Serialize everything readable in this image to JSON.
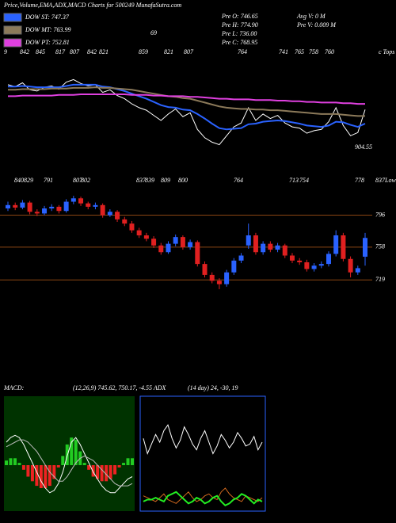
{
  "header": {
    "title": "Price,Volume,EMA,ADX,MACD Charts for 500249 MunafaSutra.com",
    "pre": [
      "Pre   O: 746.65",
      "Pre   H: 774.90",
      "Pre   L: 736.00",
      "Pre   C: 768.95"
    ],
    "avg": [
      "Avg V: 0  M",
      "Pre   V: 0.009 M"
    ],
    "marker": "69",
    "macd_label": "MACD:",
    "macd_params": "(12,26,9) 745.62, 750.17, -4.55 ADX",
    "adx_params": "(14 day) 24, -30, 19"
  },
  "chart_data": [
    {
      "type": "line",
      "ylim": [
        680,
        860
      ],
      "annotation": "904.55",
      "top_labels": [
        "9",
        "842",
        "845",
        "817",
        "807",
        "842",
        "821",
        "859",
        "821",
        "807",
        "764",
        "741",
        "765",
        "758",
        "760",
        "c Tops"
      ],
      "series": [
        {
          "color": "#ffffff",
          "values": [
            808,
            805,
            811,
            800,
            798,
            804,
            806,
            801,
            812,
            816,
            810,
            806,
            808,
            796,
            800,
            791,
            786,
            778,
            772,
            768,
            760,
            752,
            762,
            770,
            758,
            764,
            738,
            725,
            718,
            714,
            728,
            742,
            748,
            772,
            752,
            762,
            755,
            760,
            748,
            742,
            740,
            732,
            736,
            738,
            750,
            772,
            744,
            728,
            733,
            768.95
          ]
        },
        {
          "name": "DOW ST: 747.37",
          "color": "#2a62ff",
          "values": [
            805,
            805,
            806,
            805,
            804,
            804,
            804,
            804,
            806,
            808,
            808,
            808,
            808,
            805,
            804,
            801,
            798,
            794,
            790,
            786,
            781,
            776,
            773,
            772,
            769,
            768,
            762,
            755,
            747,
            740,
            738,
            739,
            740,
            746,
            747,
            750,
            751,
            752,
            751,
            749,
            747,
            744,
            743,
            742,
            744,
            750,
            749,
            745,
            742,
            747
          ]
        },
        {
          "name": "DOW MT: 763.99",
          "color": "#8c7a5a",
          "values": [
            800,
            800,
            801,
            801,
            801,
            801,
            802,
            802,
            802,
            803,
            803,
            803,
            804,
            803,
            803,
            802,
            801,
            800,
            798,
            796,
            794,
            792,
            790,
            789,
            787,
            786,
            783,
            780,
            777,
            774,
            772,
            771,
            770,
            770,
            769,
            769,
            768,
            768,
            767,
            766,
            765,
            764,
            763,
            762,
            762,
            762,
            761,
            760,
            759,
            759
          ]
        },
        {
          "name": "DOW PT: 752.81",
          "color": "#e040e0",
          "values": [
            790,
            790,
            791,
            791,
            791,
            791,
            791,
            792,
            792,
            792,
            793,
            793,
            793,
            793,
            793,
            793,
            793,
            792,
            792,
            792,
            791,
            791,
            790,
            790,
            790,
            789,
            789,
            788,
            787,
            786,
            786,
            785,
            785,
            785,
            784,
            784,
            784,
            783,
            783,
            782,
            782,
            781,
            781,
            780,
            780,
            780,
            779,
            779,
            778,
            778
          ]
        }
      ]
    },
    {
      "type": "candlestick",
      "ylim": [
        675,
        837
      ],
      "yticks": [
        837,
        796,
        758,
        719
      ],
      "up_color": "#2a62ff",
      "down_color": "#e02020",
      "low_labels": [
        "840",
        "829",
        "791",
        "807",
        "802",
        "837",
        "839",
        "809",
        "800",
        "764",
        "713",
        "754",
        "778",
        "Lows"
      ],
      "open": [
        804,
        808,
        805,
        811,
        800,
        798,
        804,
        806,
        801,
        812,
        816,
        810,
        806,
        808,
        796,
        800,
        791,
        786,
        778,
        772,
        768,
        760,
        752,
        762,
        770,
        758,
        764,
        738,
        725,
        718,
        714,
        728,
        742,
        760,
        772,
        752,
        762,
        755,
        760,
        748,
        742,
        740,
        732,
        736,
        738,
        750,
        772,
        744,
        728,
        746.65
      ],
      "high": [
        812,
        811,
        814,
        813,
        803,
        807,
        809,
        808,
        815,
        819,
        818,
        812,
        811,
        810,
        803,
        802,
        794,
        789,
        781,
        775,
        771,
        763,
        765,
        773,
        772,
        767,
        766,
        741,
        728,
        721,
        731,
        745,
        751,
        786,
        775,
        765,
        765,
        763,
        762,
        751,
        745,
        743,
        739,
        741,
        753,
        778,
        775,
        747,
        736,
        774.9
      ],
      "low": [
        801,
        802,
        803,
        797,
        795,
        796,
        801,
        798,
        799,
        809,
        807,
        803,
        803,
        793,
        794,
        788,
        783,
        775,
        769,
        765,
        757,
        749,
        750,
        759,
        755,
        755,
        735,
        722,
        715,
        708,
        711,
        725,
        739,
        756,
        749,
        749,
        752,
        752,
        745,
        739,
        737,
        729,
        729,
        733,
        735,
        747,
        741,
        722,
        725,
        736
      ],
      "close": [
        808,
        805,
        811,
        800,
        798,
        804,
        806,
        801,
        812,
        816,
        810,
        806,
        808,
        796,
        800,
        791,
        786,
        778,
        772,
        768,
        760,
        752,
        762,
        770,
        758,
        764,
        738,
        725,
        718,
        714,
        728,
        742,
        748,
        772,
        752,
        762,
        755,
        760,
        748,
        742,
        740,
        732,
        736,
        738,
        750,
        772,
        744,
        728,
        733,
        768.95
      ]
    },
    {
      "type": "macd",
      "ylim": [
        -20,
        30
      ],
      "background": "#003300",
      "series": [
        {
          "color": "#ffffff",
          "values": [
            10,
            12,
            13,
            12,
            9,
            5,
            1,
            -3,
            -7,
            -10,
            -12,
            -11,
            -8,
            -3,
            4,
            10,
            12,
            9,
            5,
            1,
            -3,
            -6,
            -9,
            -11,
            -12,
            -12,
            -10,
            -8,
            -6,
            -5
          ]
        },
        {
          "color": "#bbbbbb",
          "values": [
            8,
            9,
            10,
            11,
            11,
            10,
            8,
            6,
            3,
            0,
            -3,
            -5,
            -7,
            -7,
            -5,
            -2,
            1,
            3,
            4,
            3,
            2,
            0,
            -2,
            -4,
            -6,
            -8,
            -9,
            -9,
            -9,
            -8
          ]
        }
      ],
      "histogram": [
        2,
        3,
        3,
        1,
        -2,
        -5,
        -7,
        -9,
        -10,
        -10,
        -9,
        -6,
        -1,
        4,
        9,
        12,
        11,
        6,
        1,
        -2,
        -5,
        -6,
        -7,
        -7,
        -6,
        -4,
        -1,
        1,
        3,
        3
      ],
      "up_color": "#22cc22",
      "down_color": "#ee2222"
    },
    {
      "type": "adx",
      "ylim": [
        0,
        60
      ],
      "border": "#2a62ff",
      "series": [
        {
          "color": "#ffffff",
          "values": [
            38,
            30,
            35,
            40,
            36,
            42,
            45,
            38,
            33,
            37,
            44,
            40,
            35,
            32,
            38,
            42,
            36,
            30,
            34,
            40,
            37,
            33,
            36,
            41,
            38,
            34,
            35,
            39,
            32,
            36
          ]
        },
        {
          "color": "#d2691e",
          "values": [
            8,
            7,
            6,
            5,
            7,
            9,
            6,
            5,
            4,
            6,
            8,
            10,
            7,
            5,
            6,
            8,
            9,
            7,
            6,
            10,
            12,
            9,
            7,
            6,
            5,
            8,
            7,
            6,
            5,
            7
          ]
        },
        {
          "color": "#22ee22",
          "values": [
            5,
            6,
            6,
            7,
            6,
            5,
            8,
            9,
            10,
            8,
            6,
            4,
            5,
            7,
            6,
            4,
            5,
            7,
            8,
            5,
            3,
            4,
            6,
            7,
            9,
            8,
            6,
            4,
            6,
            5
          ]
        }
      ]
    }
  ]
}
